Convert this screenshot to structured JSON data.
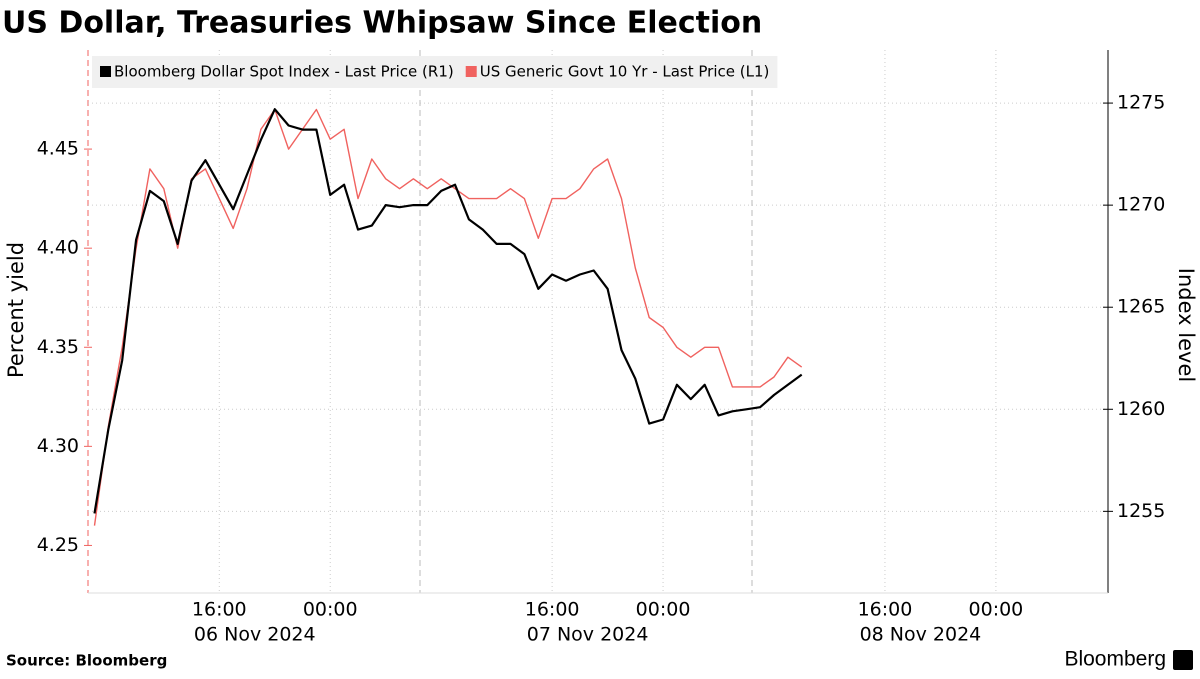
{
  "chart_data": {
    "type": "line",
    "title": "US Dollar, Treasuries Whipsaw Since Election",
    "source": "Source: Bloomberg",
    "brand": "Bloomberg",
    "ylabel": "Percent yield",
    "y2label": "Index level",
    "x": [
      "2024-11-06T07:00",
      "2024-11-06T08:00",
      "2024-11-06T09:00",
      "2024-11-06T10:00",
      "2024-11-06T11:00",
      "2024-11-06T12:00",
      "2024-11-06T13:00",
      "2024-11-06T14:00",
      "2024-11-06T15:00",
      "2024-11-06T16:00",
      "2024-11-06T17:00",
      "2024-11-06T18:00",
      "2024-11-06T19:00",
      "2024-11-06T20:00",
      "2024-11-06T21:00",
      "2024-11-06T22:00",
      "2024-11-06T23:00",
      "2024-11-07T00:00",
      "2024-11-07T01:00",
      "2024-11-07T02:00",
      "2024-11-07T03:00",
      "2024-11-07T04:00",
      "2024-11-07T05:00",
      "2024-11-07T06:00",
      "2024-11-07T07:00",
      "2024-11-07T08:00",
      "2024-11-07T09:00",
      "2024-11-07T10:00",
      "2024-11-07T11:00",
      "2024-11-07T12:00",
      "2024-11-07T13:00",
      "2024-11-07T14:00",
      "2024-11-07T15:00",
      "2024-11-07T16:00",
      "2024-11-07T17:00",
      "2024-11-07T18:00",
      "2024-11-07T19:00",
      "2024-11-07T20:00",
      "2024-11-07T21:00",
      "2024-11-07T22:00",
      "2024-11-07T23:00",
      "2024-11-08T00:00",
      "2024-11-08T01:00",
      "2024-11-08T02:00",
      "2024-11-08T03:00",
      "2024-11-08T04:00",
      "2024-11-08T05:00",
      "2024-11-08T06:00",
      "2024-11-08T07:00",
      "2024-11-08T08:00",
      "2024-11-08T09:00",
      "2024-11-08T10:00"
    ],
    "series": [
      {
        "name": "Bloomberg Dollar Spot Index - Last Price (R1)",
        "color": "#000000",
        "axis": "y2",
        "values": [
          1254.9,
          1259.0,
          1262.4,
          1268.3,
          1270.7,
          1270.2,
          1268.1,
          1271.2,
          1272.2,
          1271.0,
          1269.8,
          1271.5,
          1273.2,
          1274.7,
          1273.9,
          1273.7,
          1273.7,
          1270.5,
          1271.0,
          1268.8,
          1269.0,
          1270.0,
          1269.9,
          1270.0,
          1270.0,
          1270.7,
          1271.0,
          1269.3,
          1268.8,
          1268.1,
          1268.1,
          1267.6,
          1265.9,
          1266.6,
          1266.3,
          1266.6,
          1266.8,
          1265.9,
          1262.9,
          1261.5,
          1259.3,
          1259.5,
          1261.2,
          1260.5,
          1261.2,
          1259.7,
          1259.9,
          1260.0,
          1260.1,
          1260.7,
          1261.2,
          1261.7
        ]
      },
      {
        "name": "US Generic Govt 10 Yr - Last Price (L1)",
        "color": "#f0625f",
        "values": [
          4.26,
          4.31,
          4.35,
          4.4,
          4.44,
          4.43,
          4.4,
          4.435,
          4.44,
          4.425,
          4.41,
          4.43,
          4.46,
          4.47,
          4.45,
          4.46,
          4.47,
          4.455,
          4.46,
          4.425,
          4.445,
          4.435,
          4.43,
          4.435,
          4.43,
          4.435,
          4.43,
          4.425,
          4.425,
          4.425,
          4.43,
          4.425,
          4.405,
          4.425,
          4.425,
          4.43,
          4.44,
          4.445,
          4.425,
          4.39,
          4.365,
          4.36,
          4.35,
          4.345,
          4.35,
          4.35,
          4.33,
          4.33,
          4.33,
          4.335,
          4.345,
          4.34
        ]
      }
    ],
    "xlim": [
      "2024-11-06T06:32",
      "2024-11-09T08:05"
    ],
    "xticks": [
      {
        "value": "2024-11-06T16:00",
        "label": "16:00"
      },
      {
        "value": "2024-11-07T00:00",
        "label": "00:00"
      },
      {
        "value": "2024-11-07T16:00",
        "label": "16:00"
      },
      {
        "value": "2024-11-08T00:00",
        "label": "00:00"
      },
      {
        "value": "2024-11-08T16:00",
        "label": "16:00"
      },
      {
        "value": "2024-11-09T00:00",
        "label": "00:00"
      }
    ],
    "date_labels": [
      "06 Nov 2024",
      "07 Nov 2024",
      "08 Nov 2024"
    ],
    "ylim": [
      4.226,
      4.5
    ],
    "yticks": [
      {
        "value": 4.25,
        "label": "4.25"
      },
      {
        "value": 4.3,
        "label": "4.30"
      },
      {
        "value": 4.35,
        "label": "4.35"
      },
      {
        "value": 4.4,
        "label": "4.40"
      },
      {
        "value": 4.45,
        "label": "4.45"
      }
    ],
    "y2lim": [
      1251.0,
      1277.6
    ],
    "y2ticks": [
      1255,
      1260,
      1265,
      1270,
      1275
    ],
    "grid": true,
    "legend": "top-left"
  }
}
